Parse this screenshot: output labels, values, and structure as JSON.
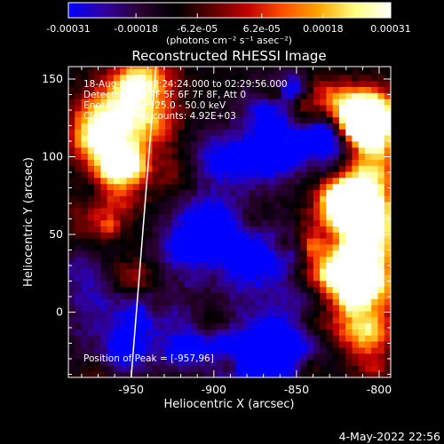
{
  "chart_data": {
    "type": "heatmap",
    "title": "Reconstructed RHESSI Image",
    "xlabel": "Heliocentric X (arcsec)",
    "ylabel": "Heliocentric Y (arcsec)",
    "xlim": [
      -988,
      -793
    ],
    "ylim": [
      -42,
      158
    ],
    "xticks": [
      -950,
      -900,
      -850,
      -800
    ],
    "xtick_labels": [
      "-950",
      "-900",
      "-850",
      "-800"
    ],
    "yticks": [
      0,
      50,
      100,
      150
    ],
    "ytick_labels": [
      "0",
      "50",
      "100",
      "150"
    ],
    "colorbar": {
      "min": -0.00031,
      "max": 0.00031,
      "ticks": [
        -0.00031,
        -0.00018,
        -6.2e-05,
        6.2e-05,
        0.00018,
        0.00031
      ],
      "tick_labels": [
        "-0.00031",
        "-0.00018",
        "-6.2e-05",
        "6.2e-05",
        "0.00018",
        "0.00031"
      ],
      "unit_label": "(photons cm⁻² s⁻¹ asec⁻²)",
      "colormap": [
        "#0000ff",
        "#3000a0",
        "#2a0030",
        "#000000",
        "#5a0000",
        "#c00000",
        "#ff5000",
        "#ffa500",
        "#ffff80",
        "#ffffff"
      ]
    },
    "annotations": [
      "18-Aug-2003 02:24:24.000 to 02:29:56.000",
      "Detectors: 3F 4F 5F 6F 7F 8F, Att 0",
      "Energy Range: 25.0 - 50.0 keV",
      "Clean      Total counts: 4.92E+03"
    ],
    "peak_label": "Position of Peak = [-957,96]",
    "peak": [
      -957,
      96
    ],
    "limb_line": [
      [
        -950,
        -42
      ],
      [
        -935,
        158
      ]
    ],
    "footer": "4-May-2022 22:56"
  }
}
